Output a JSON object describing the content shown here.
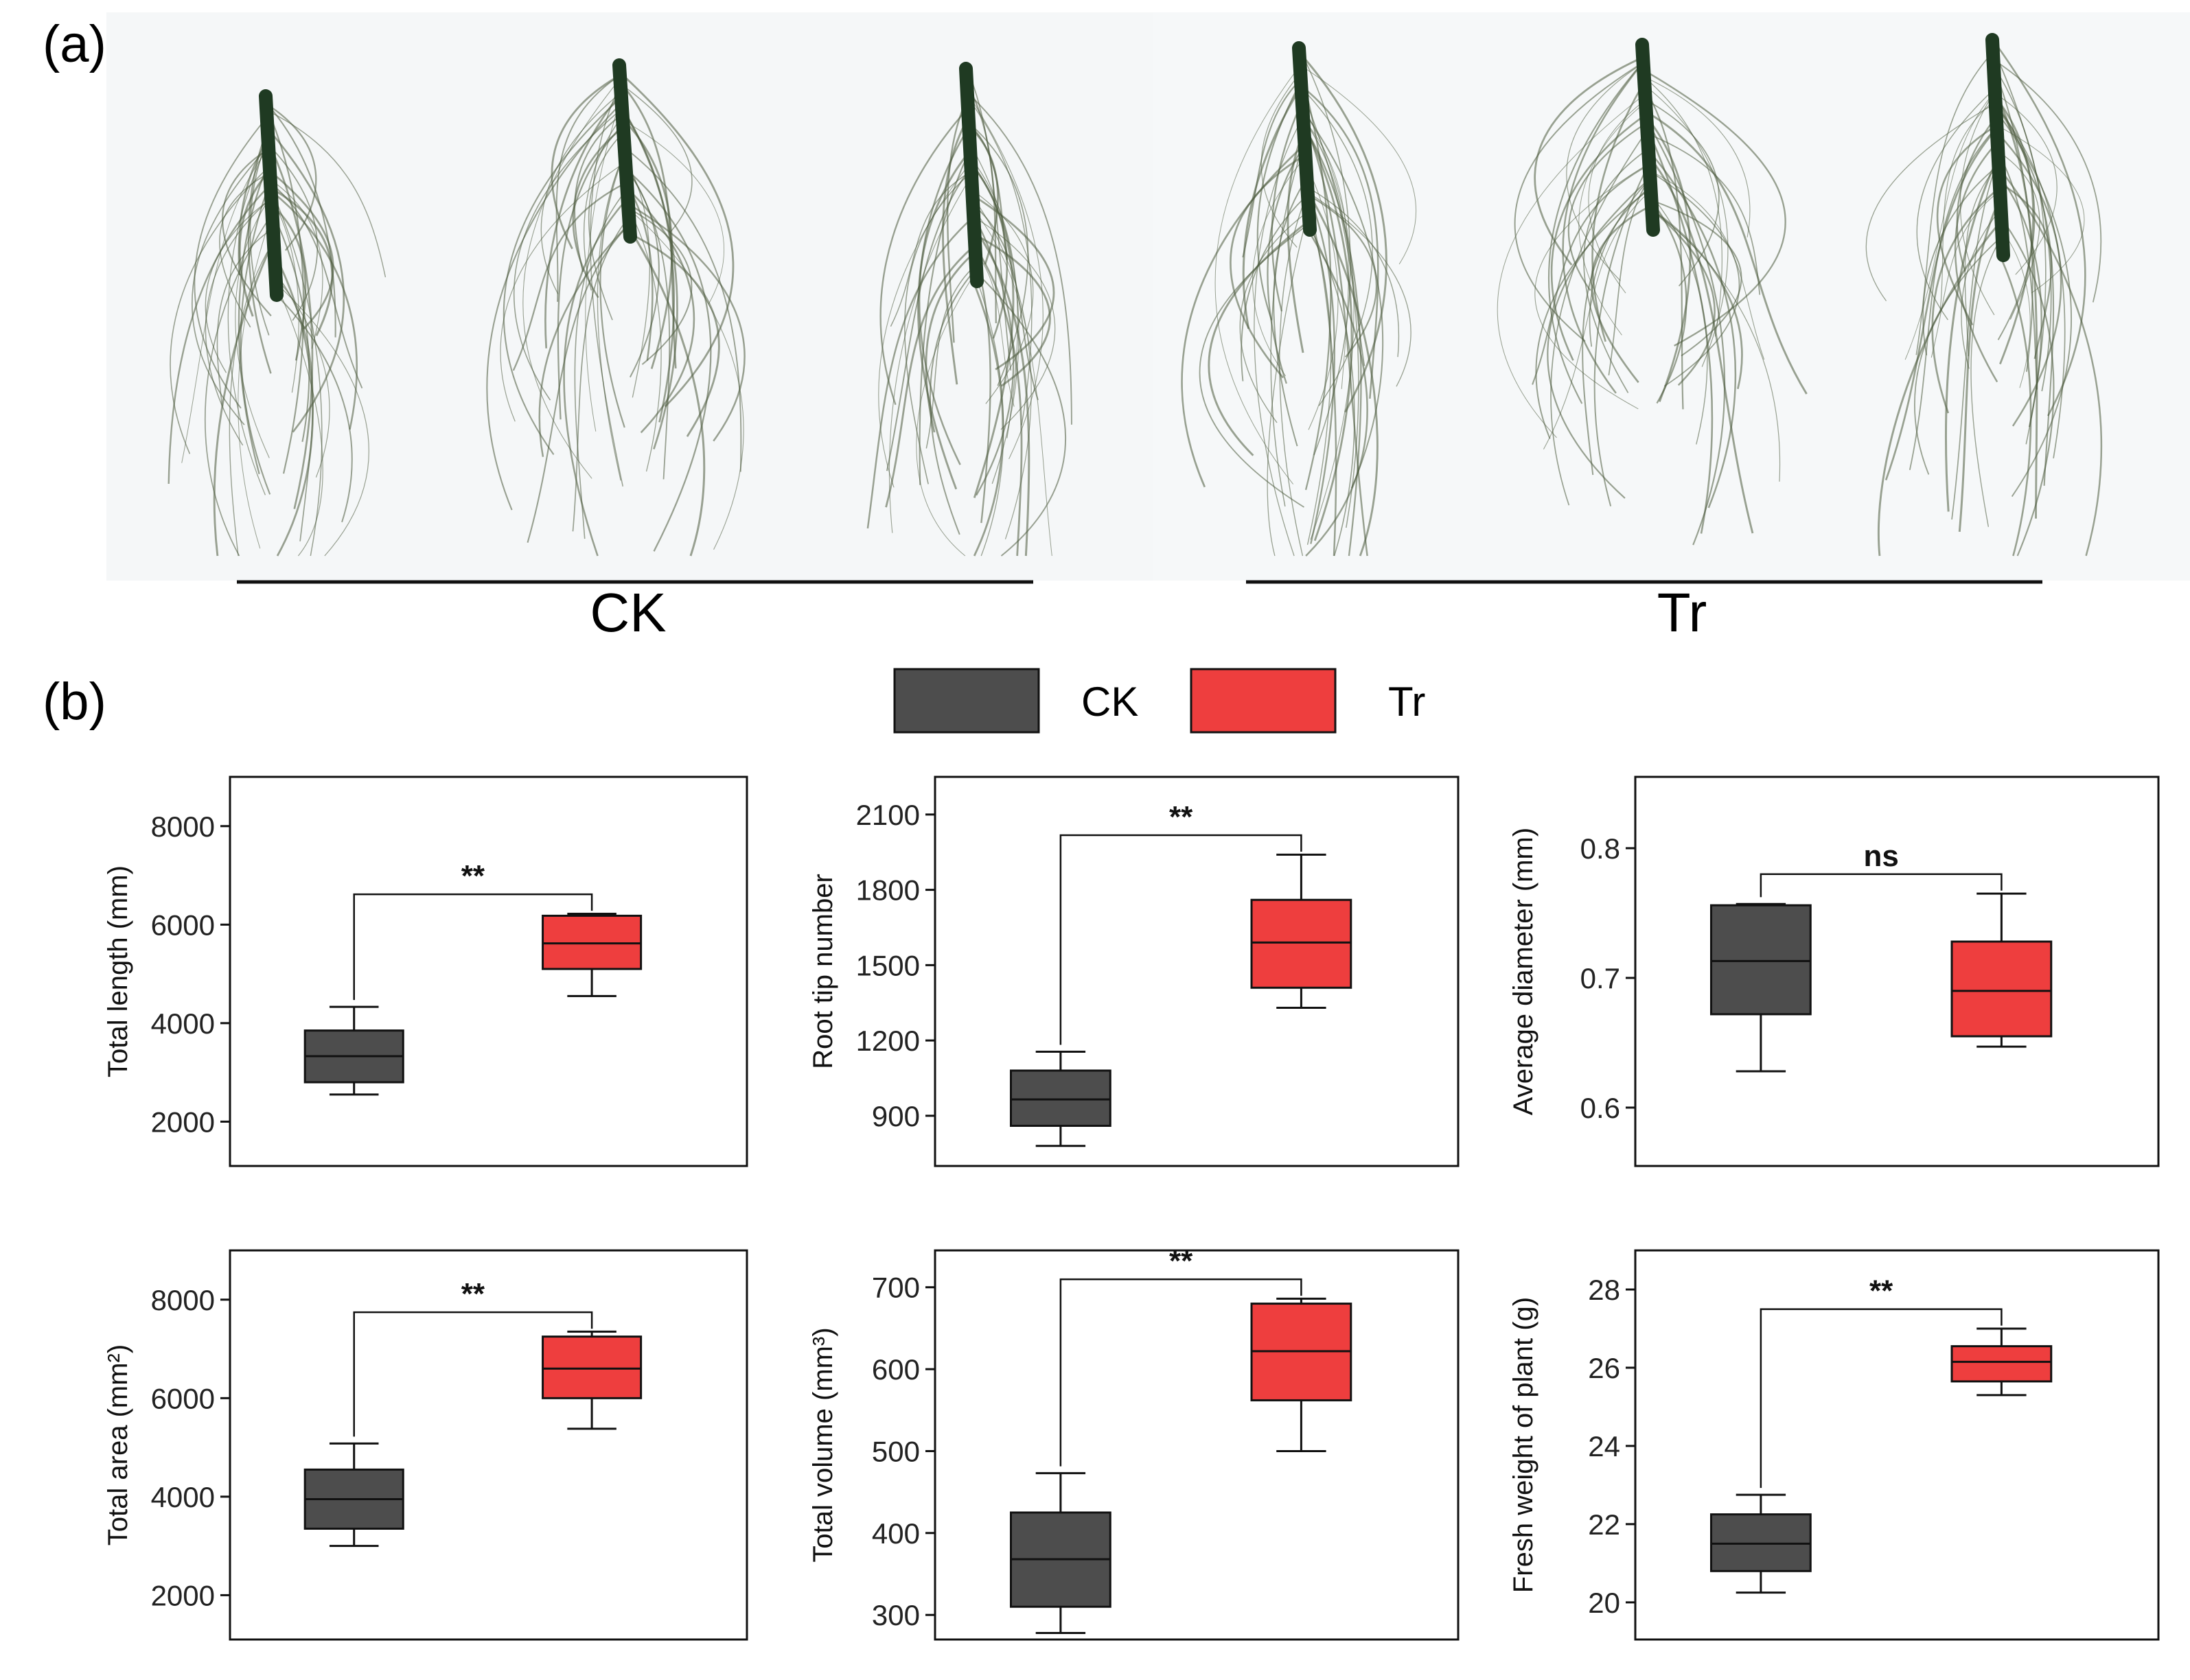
{
  "panel_labels": {
    "a": "(a)",
    "b": "(b)"
  },
  "photo": {
    "group_labels": [
      "CK",
      "Tr"
    ],
    "root_color": "#4a5a3c",
    "stem_color": "#1f3a22",
    "background": "#f5f7f8"
  },
  "legend": [
    {
      "name": "CK",
      "color": "#4d4d4d"
    },
    {
      "name": "Tr",
      "color": "#ee3e3e"
    }
  ],
  "chart_data": [
    {
      "type": "boxplot",
      "ylabel": "Total length (mm)",
      "ylim": [
        1100,
        9000
      ],
      "yticks": [
        2000,
        4000,
        6000,
        8000
      ],
      "significance": "**",
      "groups": [
        {
          "name": "CK",
          "min": 2550,
          "q1": 2800,
          "median": 3330,
          "q3": 3850,
          "max": 4330
        },
        {
          "name": "Tr",
          "min": 4550,
          "q1": 5100,
          "median": 5620,
          "q3": 6180,
          "max": 6220
        }
      ]
    },
    {
      "type": "boxplot",
      "ylabel": "Root tip number",
      "ylim": [
        700,
        2250
      ],
      "yticks": [
        900,
        1200,
        1500,
        1800,
        2100
      ],
      "significance": "**",
      "groups": [
        {
          "name": "CK",
          "min": 780,
          "q1": 860,
          "median": 965,
          "q3": 1080,
          "max": 1155
        },
        {
          "name": "Tr",
          "min": 1330,
          "q1": 1410,
          "median": 1590,
          "q3": 1760,
          "max": 1940
        }
      ]
    },
    {
      "type": "boxplot",
      "ylabel": "Average diameter  (mm)",
      "ylim": [
        0.555,
        0.855
      ],
      "yticks": [
        0.6,
        0.7,
        0.8
      ],
      "yticklabels": [
        "0.6",
        "0.7",
        "0.8"
      ],
      "significance": "ns",
      "groups": [
        {
          "name": "CK",
          "min": 0.628,
          "q1": 0.672,
          "median": 0.713,
          "q3": 0.756,
          "max": 0.757
        },
        {
          "name": "Tr",
          "min": 0.647,
          "q1": 0.655,
          "median": 0.69,
          "q3": 0.728,
          "max": 0.765
        }
      ]
    },
    {
      "type": "boxplot",
      "ylabel": "Total area (mm²)",
      "ylim": [
        1100,
        9000
      ],
      "yticks": [
        2000,
        4000,
        6000,
        8000
      ],
      "significance": "**",
      "groups": [
        {
          "name": "CK",
          "min": 3000,
          "q1": 3350,
          "median": 3950,
          "q3": 4550,
          "max": 5080
        },
        {
          "name": "Tr",
          "min": 5380,
          "q1": 6000,
          "median": 6600,
          "q3": 7250,
          "max": 7350
        }
      ]
    },
    {
      "type": "boxplot",
      "ylabel": "Total volume (mm³)",
      "ylim": [
        270,
        745
      ],
      "yticks": [
        300,
        400,
        500,
        600,
        700
      ],
      "significance": "**",
      "groups": [
        {
          "name": "CK",
          "min": 278,
          "q1": 310,
          "median": 368,
          "q3": 425,
          "max": 473
        },
        {
          "name": "Tr",
          "min": 500,
          "q1": 562,
          "median": 622,
          "q3": 680,
          "max": 686
        }
      ]
    },
    {
      "type": "boxplot",
      "ylabel": "Fresh weight of plant (g)",
      "ylim": [
        19.05,
        29.0
      ],
      "yticks": [
        20,
        22,
        24,
        26,
        28
      ],
      "significance": "**",
      "groups": [
        {
          "name": "CK",
          "min": 20.25,
          "q1": 20.8,
          "median": 21.5,
          "q3": 22.25,
          "max": 22.75
        },
        {
          "name": "Tr",
          "min": 25.3,
          "q1": 25.65,
          "median": 26.15,
          "q3": 26.55,
          "max": 27.0
        }
      ]
    }
  ]
}
